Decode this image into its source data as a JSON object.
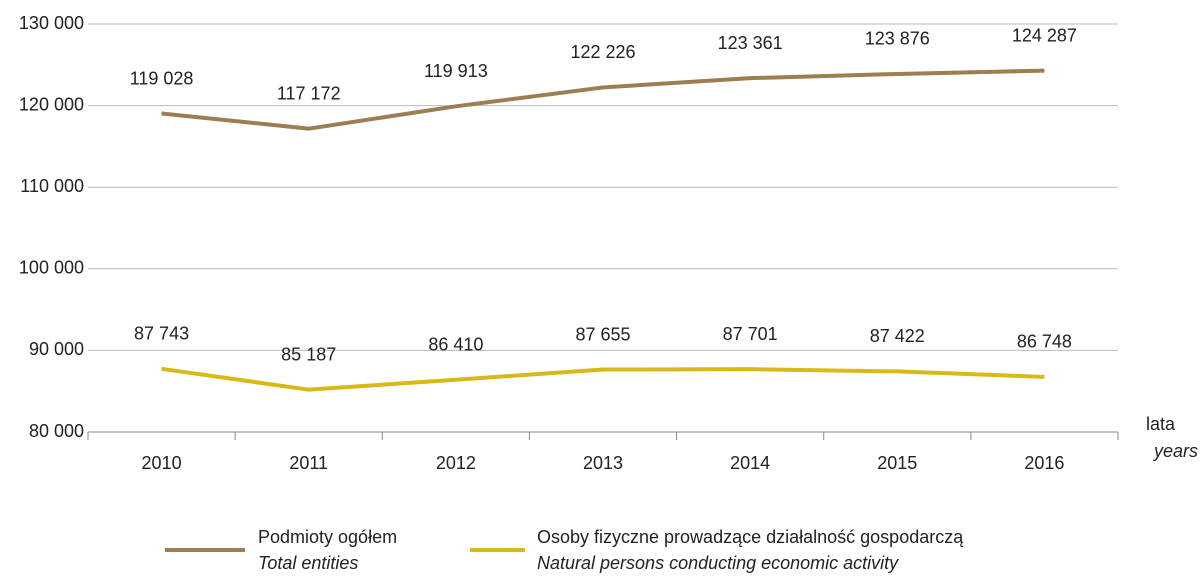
{
  "chart_data": {
    "type": "line",
    "categories": [
      "2010",
      "2011",
      "2012",
      "2013",
      "2014",
      "2015",
      "2016"
    ],
    "series": [
      {
        "name": "Podmioty ogółem",
        "name_en": "Total entities",
        "color": "#9c7e50",
        "values": [
          119028,
          117172,
          119913,
          122226,
          123361,
          123876,
          124287
        ],
        "value_labels": [
          "119 028",
          "117 172",
          "119 913",
          "122 226",
          "123 361",
          "123 876",
          "124 287"
        ]
      },
      {
        "name": "Osoby fizyczne prowadzące działalność gospodarczą",
        "name_en": "Natural persons conducting economic activity",
        "color": "#d9b81a",
        "values": [
          87743,
          85187,
          86410,
          87655,
          87701,
          87422,
          86748
        ],
        "value_labels": [
          "87 743",
          "85 187",
          "86 410",
          "87 655",
          "87 701",
          "87 422",
          "86 748"
        ]
      }
    ],
    "x_label": "lata",
    "x_label_en": "years",
    "ylim": [
      80000,
      130000
    ],
    "yticks": [
      {
        "value": 80000,
        "label": "80 000"
      },
      {
        "value": 90000,
        "label": "90 000"
      },
      {
        "value": 100000,
        "label": "100 000"
      },
      {
        "value": 110000,
        "label": "110 000"
      },
      {
        "value": 120000,
        "label": "120 000"
      },
      {
        "value": 130000,
        "label": "130 000"
      }
    ],
    "grid": true
  }
}
